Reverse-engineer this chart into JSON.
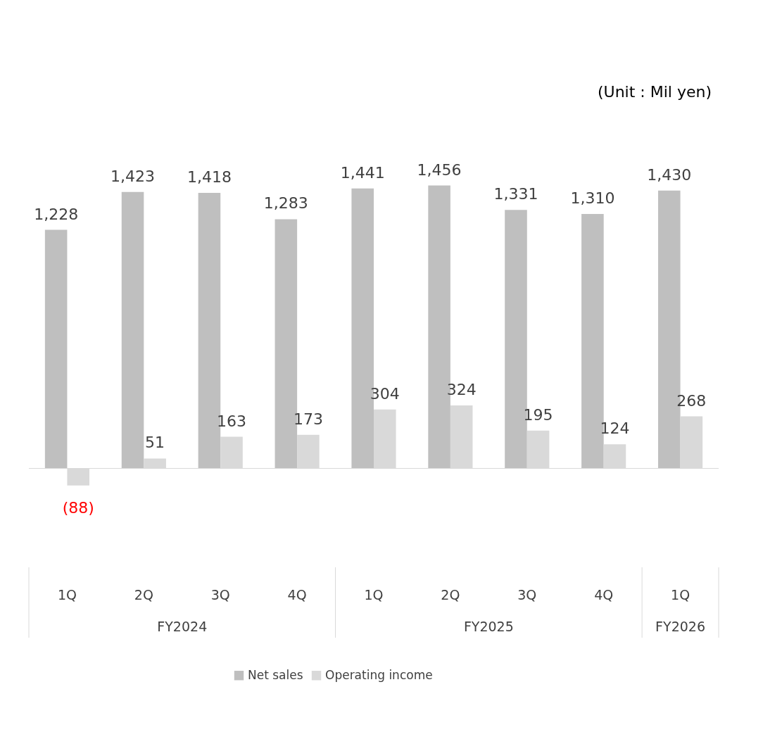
{
  "chart_data": {
    "type": "bar",
    "categories": [
      "1Q",
      "2Q",
      "3Q",
      "4Q",
      "1Q",
      "2Q",
      "3Q",
      "4Q",
      "1Q"
    ],
    "series": [
      {
        "name": "Net sales",
        "color": "#bfbfbf",
        "values": [
          1228,
          1423,
          1418,
          1283,
          1441,
          1456,
          1331,
          1310,
          1430
        ],
        "value_labels": [
          "1,228",
          "1,423",
          "1,418",
          "1,283",
          "1,441",
          "1,456",
          "1,331",
          "1,310",
          "1,430"
        ]
      },
      {
        "name": "Operating income",
        "color": "#d9d9d9",
        "values": [
          -88,
          51,
          163,
          173,
          304,
          324,
          195,
          124,
          268
        ],
        "value_labels": [
          "(88)",
          "51",
          "163",
          "173",
          "304",
          "324",
          "195",
          "124",
          "268"
        ]
      }
    ],
    "annotations": [
      "(Unit : Mil yen)",
      "FY2024",
      "FY2025",
      "FY2026"
    ],
    "legend": "bottom",
    "grid": false
  }
}
